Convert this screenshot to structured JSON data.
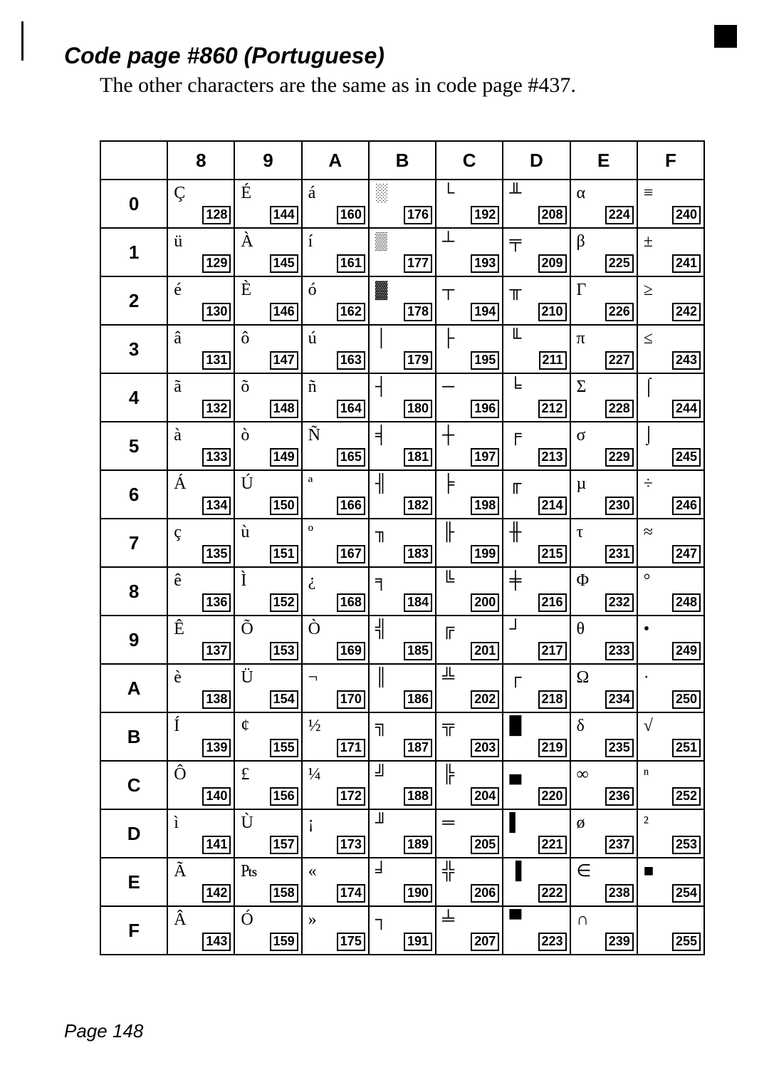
{
  "heading": "Code page #860 (Portuguese)",
  "subheading": "The other characters are the same as in code page #437.",
  "footer": "Page 148",
  "columns": [
    "8",
    "9",
    "A",
    "B",
    "C",
    "D",
    "E",
    "F"
  ],
  "rows": [
    "0",
    "1",
    "2",
    "3",
    "4",
    "5",
    "6",
    "7",
    "8",
    "9",
    "A",
    "B",
    "C",
    "D",
    "E",
    "F"
  ],
  "cells": {
    "0": [
      {
        "glyph": "Ç",
        "code": "128"
      },
      {
        "glyph": "É",
        "code": "144"
      },
      {
        "glyph": "á",
        "code": "160"
      },
      {
        "glyph": "░",
        "code": "176"
      },
      {
        "glyph": "└",
        "code": "192"
      },
      {
        "glyph": "╨",
        "code": "208"
      },
      {
        "glyph": "α",
        "code": "224"
      },
      {
        "glyph": "≡",
        "code": "240"
      }
    ],
    "1": [
      {
        "glyph": "ü",
        "code": "129"
      },
      {
        "glyph": "À",
        "code": "145"
      },
      {
        "glyph": "í",
        "code": "161"
      },
      {
        "glyph": "▒",
        "code": "177"
      },
      {
        "glyph": "┴",
        "code": "193"
      },
      {
        "glyph": "╤",
        "code": "209"
      },
      {
        "glyph": "β",
        "code": "225"
      },
      {
        "glyph": "±",
        "code": "241"
      }
    ],
    "2": [
      {
        "glyph": "é",
        "code": "130"
      },
      {
        "glyph": "È",
        "code": "146"
      },
      {
        "glyph": "ó",
        "code": "162"
      },
      {
        "glyph": "▓",
        "code": "178"
      },
      {
        "glyph": "┬",
        "code": "194"
      },
      {
        "glyph": "╥",
        "code": "210"
      },
      {
        "glyph": "Γ",
        "code": "226"
      },
      {
        "glyph": "≥",
        "code": "242"
      }
    ],
    "3": [
      {
        "glyph": "â",
        "code": "131"
      },
      {
        "glyph": "ô",
        "code": "147"
      },
      {
        "glyph": "ú",
        "code": "163"
      },
      {
        "glyph": "│",
        "code": "179"
      },
      {
        "glyph": "├",
        "code": "195"
      },
      {
        "glyph": "╙",
        "code": "211"
      },
      {
        "glyph": "π",
        "code": "227"
      },
      {
        "glyph": "≤",
        "code": "243"
      }
    ],
    "4": [
      {
        "glyph": "ã",
        "code": "132"
      },
      {
        "glyph": "õ",
        "code": "148"
      },
      {
        "glyph": "ñ",
        "code": "164"
      },
      {
        "glyph": "┤",
        "code": "180"
      },
      {
        "glyph": "─",
        "code": "196"
      },
      {
        "glyph": "╘",
        "code": "212"
      },
      {
        "glyph": "Σ",
        "code": "228"
      },
      {
        "glyph": "⌠",
        "code": "244"
      }
    ],
    "5": [
      {
        "glyph": "à",
        "code": "133"
      },
      {
        "glyph": "ò",
        "code": "149"
      },
      {
        "glyph": "Ñ",
        "code": "165"
      },
      {
        "glyph": "╡",
        "code": "181"
      },
      {
        "glyph": "┼",
        "code": "197"
      },
      {
        "glyph": "╒",
        "code": "213"
      },
      {
        "glyph": "σ",
        "code": "229"
      },
      {
        "glyph": "⌡",
        "code": "245"
      }
    ],
    "6": [
      {
        "glyph": "Á",
        "code": "134"
      },
      {
        "glyph": "Ú",
        "code": "150"
      },
      {
        "glyph": "ª",
        "code": "166"
      },
      {
        "glyph": "╢",
        "code": "182"
      },
      {
        "glyph": "╞",
        "code": "198"
      },
      {
        "glyph": "╓",
        "code": "214"
      },
      {
        "glyph": "µ",
        "code": "230"
      },
      {
        "glyph": "÷",
        "code": "246"
      }
    ],
    "7": [
      {
        "glyph": "ç",
        "code": "135"
      },
      {
        "glyph": "ù",
        "code": "151"
      },
      {
        "glyph": "º",
        "code": "167"
      },
      {
        "glyph": "╖",
        "code": "183"
      },
      {
        "glyph": "╟",
        "code": "199"
      },
      {
        "glyph": "╫",
        "code": "215"
      },
      {
        "glyph": "τ",
        "code": "231"
      },
      {
        "glyph": "≈",
        "code": "247"
      }
    ],
    "8": [
      {
        "glyph": "ê",
        "code": "136"
      },
      {
        "glyph": "Ì",
        "code": "152"
      },
      {
        "glyph": "¿",
        "code": "168"
      },
      {
        "glyph": "╕",
        "code": "184"
      },
      {
        "glyph": "╚",
        "code": "200"
      },
      {
        "glyph": "╪",
        "code": "216"
      },
      {
        "glyph": "Φ",
        "code": "232"
      },
      {
        "glyph": "°",
        "code": "248"
      }
    ],
    "9": [
      {
        "glyph": "Ê",
        "code": "137"
      },
      {
        "glyph": "Õ",
        "code": "153"
      },
      {
        "glyph": "Ò",
        "code": "169"
      },
      {
        "glyph": "╣",
        "code": "185"
      },
      {
        "glyph": "╔",
        "code": "201"
      },
      {
        "glyph": "┘",
        "code": "217"
      },
      {
        "glyph": "θ",
        "code": "233"
      },
      {
        "glyph": "•",
        "code": "249"
      }
    ],
    "A": [
      {
        "glyph": "è",
        "code": "138"
      },
      {
        "glyph": "Ü",
        "code": "154"
      },
      {
        "glyph": "¬",
        "code": "170"
      },
      {
        "glyph": "║",
        "code": "186"
      },
      {
        "glyph": "╩",
        "code": "202"
      },
      {
        "glyph": "┌",
        "code": "218"
      },
      {
        "glyph": "Ω",
        "code": "234"
      },
      {
        "glyph": "·",
        "code": "250"
      }
    ],
    "B": [
      {
        "glyph": "Í",
        "code": "139"
      },
      {
        "glyph": "¢",
        "code": "155"
      },
      {
        "glyph": "½",
        "code": "171"
      },
      {
        "glyph": "╗",
        "code": "187"
      },
      {
        "glyph": "╦",
        "code": "203"
      },
      {
        "glyph": "█",
        "code": "219"
      },
      {
        "glyph": "δ",
        "code": "235"
      },
      {
        "glyph": "√",
        "code": "251"
      }
    ],
    "C": [
      {
        "glyph": "Ô",
        "code": "140"
      },
      {
        "glyph": "£",
        "code": "156"
      },
      {
        "glyph": "¼",
        "code": "172"
      },
      {
        "glyph": "╝",
        "code": "188"
      },
      {
        "glyph": "╠",
        "code": "204"
      },
      {
        "glyph": "▄",
        "code": "220"
      },
      {
        "glyph": "∞",
        "code": "236"
      },
      {
        "glyph": "ⁿ",
        "code": "252"
      }
    ],
    "D": [
      {
        "glyph": "ì",
        "code": "141"
      },
      {
        "glyph": "Ù",
        "code": "157"
      },
      {
        "glyph": "¡",
        "code": "173"
      },
      {
        "glyph": "╜",
        "code": "189"
      },
      {
        "glyph": "═",
        "code": "205"
      },
      {
        "glyph": "▌",
        "code": "221"
      },
      {
        "glyph": "ø",
        "code": "237"
      },
      {
        "glyph": "²",
        "code": "253"
      }
    ],
    "E": [
      {
        "glyph": "Ã",
        "code": "142"
      },
      {
        "glyph": "₧",
        "code": "158"
      },
      {
        "glyph": "«",
        "code": "174"
      },
      {
        "glyph": "╛",
        "code": "190"
      },
      {
        "glyph": "╬",
        "code": "206"
      },
      {
        "glyph": "▐",
        "code": "222"
      },
      {
        "glyph": "∈",
        "code": "238"
      },
      {
        "glyph": "■",
        "code": "254"
      }
    ],
    "F": [
      {
        "glyph": "Â",
        "code": "143"
      },
      {
        "glyph": "Ó",
        "code": "159"
      },
      {
        "glyph": "»",
        "code": "175"
      },
      {
        "glyph": "┐",
        "code": "191"
      },
      {
        "glyph": "╧",
        "code": "207"
      },
      {
        "glyph": "▀",
        "code": "223"
      },
      {
        "glyph": "∩",
        "code": "239"
      },
      {
        "glyph": "",
        "code": "255"
      }
    ]
  }
}
